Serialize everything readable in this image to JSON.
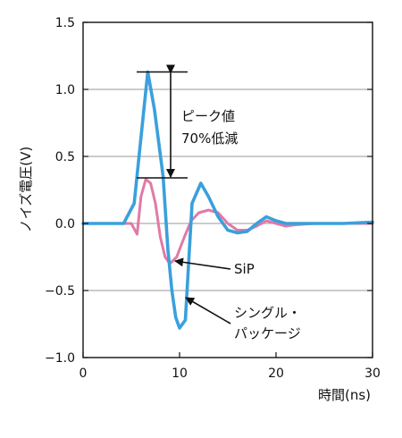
{
  "chart_data": {
    "type": "line",
    "title": "",
    "xlabel": "時間(ns)",
    "ylabel": "ノイズ電圧(V)",
    "xlim": [
      0,
      30
    ],
    "ylim": [
      -1.0,
      1.5
    ],
    "x_ticks": [
      0,
      10,
      20,
      30
    ],
    "x_tick_labels": [
      "0",
      "10",
      "20",
      "30"
    ],
    "y_ticks": [
      1.5,
      1.0,
      0.5,
      0.0,
      -0.5,
      -1.0
    ],
    "y_tick_labels": [
      "1.5",
      "1.0",
      "0.5",
      "0.0",
      "−0.5",
      "−1.0"
    ],
    "grid": "horizontal",
    "series": [
      {
        "name": "SiP",
        "color": "#e07aa6",
        "points": [
          [
            0,
            0
          ],
          [
            5,
            0
          ],
          [
            5.6,
            -0.08
          ],
          [
            6,
            0.2
          ],
          [
            6.5,
            0.33
          ],
          [
            7,
            0.3
          ],
          [
            7.5,
            0.15
          ],
          [
            8,
            -0.1
          ],
          [
            8.5,
            -0.25
          ],
          [
            9,
            -0.3
          ],
          [
            9.7,
            -0.25
          ],
          [
            10.5,
            -0.1
          ],
          [
            11.2,
            0.02
          ],
          [
            12,
            0.08
          ],
          [
            13,
            0.1
          ],
          [
            14,
            0.08
          ],
          [
            15,
            0.0
          ],
          [
            16,
            -0.05
          ],
          [
            17,
            -0.05
          ],
          [
            18,
            -0.02
          ],
          [
            19,
            0.02
          ],
          [
            20,
            0.0
          ],
          [
            21,
            -0.02
          ],
          [
            22,
            -0.01
          ],
          [
            24,
            0.0
          ],
          [
            30,
            0.0
          ]
        ]
      },
      {
        "name": "シングル・パッケージ",
        "color": "#3aa0dc",
        "points": [
          [
            0,
            0
          ],
          [
            4.2,
            0
          ],
          [
            5.3,
            0.15
          ],
          [
            6.7,
            1.13
          ],
          [
            7.4,
            0.85
          ],
          [
            8.3,
            0.35
          ],
          [
            8.8,
            -0.2
          ],
          [
            9.2,
            -0.5
          ],
          [
            9.6,
            -0.7
          ],
          [
            10,
            -0.78
          ],
          [
            10.6,
            -0.72
          ],
          [
            11.3,
            0.15
          ],
          [
            12.2,
            0.3
          ],
          [
            13,
            0.2
          ],
          [
            14,
            0.05
          ],
          [
            15,
            -0.05
          ],
          [
            16,
            -0.07
          ],
          [
            17,
            -0.06
          ],
          [
            18,
            0.0
          ],
          [
            19,
            0.05
          ],
          [
            20,
            0.02
          ],
          [
            21,
            0.0
          ],
          [
            22,
            0.0
          ],
          [
            24,
            0.0
          ],
          [
            27,
            0.0
          ],
          [
            30,
            0.01
          ]
        ]
      }
    ],
    "annotations": {
      "peak_text_line1": "ピーク値",
      "peak_text_line2": "70%低減",
      "sip_label": "SiP",
      "single_label_line1": "シングル・",
      "single_label_line2": "パッケージ",
      "peak_top_value": 1.13,
      "peak_bottom_value": 0.34
    }
  }
}
